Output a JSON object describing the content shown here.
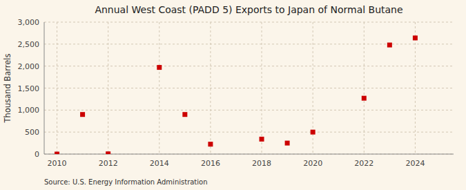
{
  "chart_data": {
    "type": "scatter",
    "title": "Annual West Coast (PADD 5) Exports to Japan of Normal Butane",
    "ylabel": "Thousand Barrels",
    "source": "Source: U.S. Energy Information Administration",
    "x": [
      2010,
      2011,
      2012,
      2014,
      2015,
      2016,
      2018,
      2019,
      2020,
      2022,
      2023,
      2024
    ],
    "values": [
      0,
      900,
      5,
      1970,
      900,
      225,
      340,
      250,
      500,
      1270,
      2480,
      2640
    ],
    "color": "#cc0000",
    "marker": "square",
    "xlim": [
      2009.5,
      2025.5
    ],
    "ylim": [
      0,
      3000
    ],
    "xticks": [
      2010,
      2012,
      2014,
      2016,
      2018,
      2020,
      2022,
      2024
    ],
    "yticks": [
      0,
      500,
      {
        "value": 1000,
        "label": "1,000"
      },
      {
        "value": 1500,
        "label": "1,500"
      },
      {
        "value": 2000,
        "label": "2,000"
      },
      {
        "value": 2500,
        "label": "2,500"
      },
      {
        "value": 3000,
        "label": "3,000"
      }
    ],
    "grid": true
  }
}
